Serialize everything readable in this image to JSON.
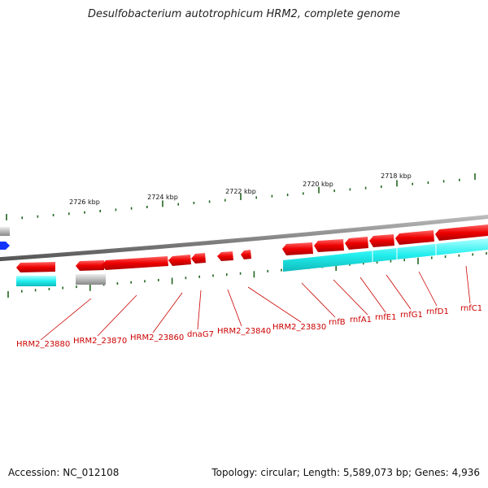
{
  "title": "Desulfobacterium autotrophicum HRM2, complete genome",
  "footer": {
    "accession": "Accession: NC_012108",
    "summary": "Topology: circular; Length: 5,589,073 bp; Genes: 4,936"
  },
  "colors": {
    "cds": "#ee1111",
    "gene": "#22eeee",
    "pseudo": "#aaaaaa",
    "other": "#1133ff",
    "tick": "#226622",
    "backbone": "#888888",
    "label": "#cc0000"
  },
  "scale_labels": [
    "2726 kbp",
    "2724 kbp",
    "2722 kbp",
    "2720 kbp",
    "2718 kbp"
  ],
  "gene_labels": [
    "HRM2_23880",
    "HRM2_23870",
    "HRM2_23860",
    "dnaG7",
    "HRM2_23840",
    "HRM2_23830",
    "rnfB",
    "rnfA1",
    "rnfE1",
    "rnfG1",
    "rnfD1",
    "rnfC1"
  ]
}
